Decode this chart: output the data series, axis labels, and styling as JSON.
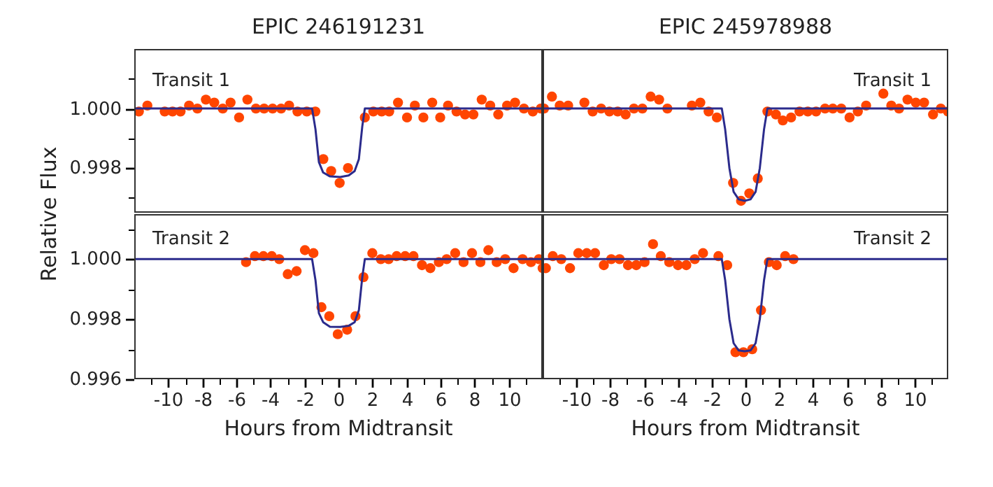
{
  "chart_data": [
    {
      "type": "scatter",
      "title": "EPIC 246191231",
      "ylabel": "Relative Flux",
      "annotations": [
        "Transit 1"
      ],
      "xlim": [
        -12,
        12
      ],
      "ylim": [
        0.9965,
        1.002
      ],
      "yticks": [
        {
          "value": 0.997,
          "label": null
        },
        {
          "value": 0.998,
          "label": "0.998"
        },
        {
          "value": 0.999,
          "label": null
        },
        {
          "value": 1.0,
          "label": "1.000"
        },
        {
          "value": 1.001,
          "label": null
        }
      ],
      "tick_labels": "y",
      "grid": false,
      "legend": false,
      "marker": "circle",
      "series": [
        {
          "color": "#ff4500",
          "x": [
            -11.73,
            -11.23,
            -10.21,
            -9.75,
            -9.28,
            -8.78,
            -8.29,
            -7.79,
            -7.3,
            -6.8,
            -6.34,
            -5.84,
            -5.35,
            -4.85,
            -4.37,
            -3.87,
            -3.37,
            -2.9,
            -2.41,
            -1.86,
            -1.36,
            -0.89,
            -0.43,
            0.07,
            0.56,
            1.55,
            2.05,
            2.54,
            2.98,
            3.5,
            4.03,
            4.49,
            4.99,
            5.51,
            5.98,
            6.44,
            6.94,
            7.44,
            7.93,
            8.42,
            8.92,
            9.39,
            9.91,
            10.38,
            10.9,
            11.42,
            11.89
          ],
          "values": [
            0.9999,
            1.0001,
            0.9999,
            0.9999,
            0.9999,
            1.0001,
            1.0,
            1.0003,
            1.0002,
            1.0,
            1.0002,
            0.9997,
            1.0003,
            1.0,
            1.0,
            1.0,
            1.0,
            1.0001,
            0.9999,
            0.9999,
            0.9999,
            0.9983,
            0.9979,
            0.9975,
            0.998,
            0.9997,
            0.9999,
            0.9999,
            0.9999,
            1.0002,
            0.9997,
            1.0001,
            0.9997,
            1.0002,
            0.9997,
            1.0001,
            0.9999,
            0.9998,
            0.9998,
            1.0003,
            1.0001,
            0.9998,
            1.0001,
            1.0002,
            1.0,
            0.9999,
            1.0
          ]
        },
        {
          "type": "line",
          "marker": "none",
          "color": "#2b2b8c",
          "x": [
            -12,
            -1.55,
            -1.35,
            -1.15,
            -0.9,
            -0.5,
            0.1,
            0.6,
            0.95,
            1.2,
            1.4,
            1.55,
            12
          ],
          "values": [
            1.0,
            1.0,
            0.9993,
            0.9982,
            0.99785,
            0.99772,
            0.9977,
            0.99775,
            0.9979,
            0.9983,
            0.9994,
            1.0,
            1.0
          ]
        }
      ]
    },
    {
      "type": "scatter",
      "title": "EPIC 245978988",
      "annotations": [
        "Transit 1"
      ],
      "xlim": [
        -12,
        12
      ],
      "ylim": [
        0.9965,
        1.002
      ],
      "tick_labels": false,
      "grid": false,
      "legend": false,
      "marker": "circle",
      "series": [
        {
          "color": "#ff4500",
          "x": [
            -11.92,
            -11.45,
            -10.99,
            -10.49,
            -9.53,
            -9.04,
            -8.54,
            -8.05,
            -7.56,
            -7.09,
            -6.6,
            -6.1,
            -5.61,
            -5.11,
            -4.62,
            -3.17,
            -2.67,
            -2.18,
            -1.69,
            -0.73,
            -0.26,
            0.23,
            0.73,
            1.3,
            1.8,
            2.21,
            2.7,
            3.2,
            3.69,
            4.18,
            4.71,
            5.17,
            5.67,
            6.16,
            6.65,
            7.14,
            8.16,
            8.63,
            9.09,
            9.59,
            10.08,
            10.57,
            11.1,
            11.56,
            11.98
          ],
          "values": [
            1.0,
            1.0004,
            1.0001,
            1.0001,
            1.0002,
            0.9999,
            1.0,
            0.9999,
            0.9999,
            0.9998,
            1.0,
            1.0,
            1.0004,
            1.0003,
            1.0,
            1.0001,
            1.0002,
            0.9999,
            0.9997,
            0.9975,
            0.9969,
            0.99715,
            0.99765,
            0.9999,
            0.9998,
            0.9996,
            0.9997,
            0.9999,
            0.9999,
            0.9999,
            1.0,
            1.0,
            1.0,
            0.9997,
            0.9999,
            1.0001,
            1.0005,
            1.0001,
            1.0,
            1.0003,
            1.0002,
            1.0002,
            0.9998,
            1.0,
            0.9999
          ]
        },
        {
          "type": "line",
          "marker": "none",
          "color": "#2b2b8c",
          "x": [
            -12,
            -1.4,
            -1.2,
            -0.95,
            -0.7,
            -0.4,
            -0.05,
            0.3,
            0.6,
            0.85,
            1.1,
            1.3,
            12
          ],
          "values": [
            1.0,
            1.0,
            0.9993,
            0.998,
            0.9972,
            0.99695,
            0.9969,
            0.99695,
            0.9972,
            0.998,
            0.9993,
            1.0,
            1.0
          ]
        }
      ]
    },
    {
      "type": "scatter",
      "xlabel": "Hours from Midtransit",
      "annotations": [
        "Transit 2"
      ],
      "xlim": [
        -12,
        12
      ],
      "ylim": [
        0.996,
        1.0015
      ],
      "xticks": [
        {
          "value": -11,
          "label": null
        },
        -10,
        {
          "value": -9,
          "label": null
        },
        -8,
        {
          "value": -7,
          "label": null
        },
        -6,
        {
          "value": -5,
          "label": null
        },
        -4,
        {
          "value": -3,
          "label": null
        },
        -2,
        {
          "value": -1,
          "label": null
        },
        0,
        {
          "value": 1,
          "label": null
        },
        2,
        {
          "value": 3,
          "label": null
        },
        4,
        {
          "value": 5,
          "label": null
        },
        6,
        {
          "value": 7,
          "label": null
        },
        8,
        {
          "value": 9,
          "label": null
        },
        10,
        {
          "value": 11,
          "label": null
        }
      ],
      "yticks": [
        {
          "value": 0.996,
          "label": "0.996"
        },
        {
          "value": 0.997,
          "label": null
        },
        {
          "value": 0.998,
          "label": "0.998"
        },
        {
          "value": 0.999,
          "label": null
        },
        {
          "value": 1.0,
          "label": "1.000"
        },
        {
          "value": 1.001,
          "label": null
        }
      ],
      "grid": false,
      "legend": false,
      "marker": "circle",
      "series": [
        {
          "color": "#ff4500",
          "x": [
            -5.43,
            -4.91,
            -4.41,
            -3.92,
            -3.48,
            -2.98,
            -2.46,
            -1.97,
            -1.47,
            -1.0,
            -0.54,
            -0.04,
            0.51,
            1.0,
            1.47,
            1.99,
            2.49,
            2.95,
            3.42,
            3.92,
            4.41,
            4.91,
            5.4,
            5.9,
            6.36,
            6.86,
            7.35,
            7.85,
            8.34,
            8.81,
            9.3,
            9.8,
            10.29,
            10.82,
            11.31,
            11.78,
            12.0
          ],
          "values": [
            0.9999,
            1.0001,
            1.0001,
            1.0001,
            1.0,
            0.9995,
            0.9996,
            1.0003,
            1.0002,
            0.9984,
            0.9981,
            0.9975,
            0.99765,
            0.9981,
            0.9994,
            1.0002,
            1.0,
            1.0,
            1.0001,
            1.0001,
            1.0001,
            0.9998,
            0.9997,
            0.9999,
            1.0,
            1.0002,
            0.9999,
            1.0002,
            0.9999,
            1.0003,
            0.9999,
            1.0,
            0.9997,
            1.0,
            0.9999,
            1.0,
            0.9997
          ]
        },
        {
          "type": "line",
          "marker": "none",
          "color": "#2b2b8c",
          "x": [
            -12,
            -1.55,
            -1.35,
            -1.15,
            -0.9,
            -0.5,
            0.1,
            0.6,
            0.95,
            1.2,
            1.4,
            1.55,
            12
          ],
          "values": [
            1.0,
            1.0,
            0.9993,
            0.9982,
            0.9979,
            0.99775,
            0.99774,
            0.99778,
            0.9979,
            0.9983,
            0.9994,
            1.0,
            1.0
          ]
        }
      ]
    },
    {
      "type": "scatter",
      "xlabel": "Hours from Midtransit",
      "annotations": [
        "Transit 2"
      ],
      "xlim": [
        -12,
        12
      ],
      "ylim": [
        0.996,
        1.0015
      ],
      "xticks": [
        {
          "value": -11,
          "label": null
        },
        -10,
        {
          "value": -9,
          "label": null
        },
        -8,
        {
          "value": -7,
          "label": null
        },
        -6,
        {
          "value": -5,
          "label": null
        },
        -4,
        {
          "value": -3,
          "label": null
        },
        -2,
        {
          "value": -1,
          "label": null
        },
        0,
        {
          "value": 1,
          "label": null
        },
        2,
        {
          "value": 3,
          "label": null
        },
        4,
        {
          "value": 5,
          "label": null
        },
        6,
        {
          "value": 7,
          "label": null
        },
        8,
        {
          "value": 9,
          "label": null
        },
        10,
        {
          "value": 11,
          "label": null
        }
      ],
      "tick_labels": "x",
      "grid": false,
      "legend": false,
      "marker": "circle",
      "series": [
        {
          "color": "#ff4500",
          "x": [
            -11.81,
            -11.4,
            -10.9,
            -10.38,
            -9.89,
            -9.39,
            -8.9,
            -8.38,
            -7.94,
            -7.45,
            -6.95,
            -6.46,
            -5.97,
            -5.47,
            -5.01,
            -4.51,
            -3.99,
            -3.5,
            -3.0,
            -2.51,
            -1.6,
            -1.08,
            -0.59,
            -0.12,
            0.4,
            0.92,
            1.39,
            1.85,
            2.35,
            2.84
          ],
          "values": [
            0.9997,
            1.0001,
            1.0,
            0.9997,
            1.0002,
            1.0002,
            1.0002,
            0.9998,
            1.0,
            1.0,
            0.9998,
            0.9998,
            0.9999,
            1.0005,
            1.0001,
            0.9999,
            0.9998,
            0.9998,
            1.0,
            1.0002,
            1.0001,
            0.9998,
            0.9969,
            0.9969,
            0.997,
            0.9983,
            0.9999,
            0.9998,
            1.0001,
            1.0
          ]
        },
        {
          "type": "line",
          "marker": "none",
          "color": "#2b2b8c",
          "x": [
            -12,
            -1.4,
            -1.2,
            -0.95,
            -0.7,
            -0.4,
            -0.05,
            0.3,
            0.6,
            0.85,
            1.1,
            1.3,
            12
          ],
          "values": [
            1.0,
            1.0,
            0.9993,
            0.998,
            0.9972,
            0.99696,
            0.99693,
            0.99696,
            0.9972,
            0.998,
            0.9993,
            1.0,
            1.0
          ]
        }
      ]
    }
  ]
}
